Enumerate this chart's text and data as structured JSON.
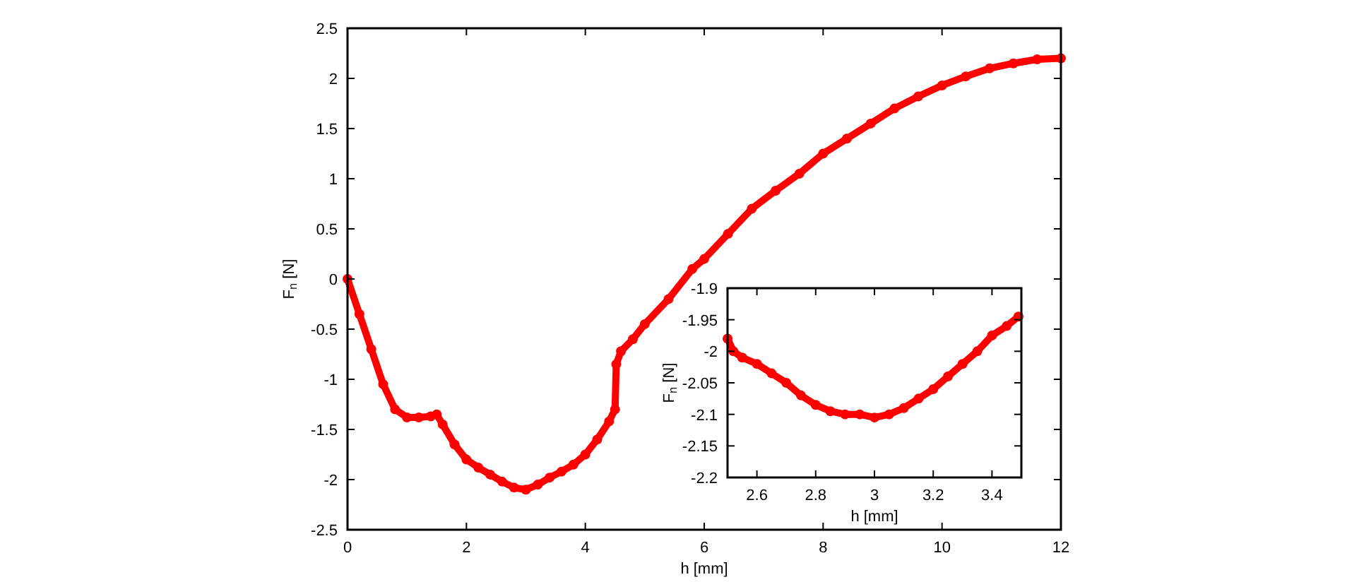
{
  "chart_data": [
    {
      "type": "line",
      "xlabel": "h [mm]",
      "ylabel": "F$_{n}$ [N]",
      "marker": "circle",
      "line_style": "solid",
      "grid": false,
      "xlim": [
        0,
        12
      ],
      "ylim": [
        -2.5,
        2.5
      ],
      "xticks": [
        0,
        2,
        4,
        6,
        8,
        10,
        12
      ],
      "yticks": [
        -2.5,
        -2,
        -1.5,
        -1,
        -0.5,
        0,
        0.5,
        1,
        1.5,
        2,
        2.5
      ],
      "series": [
        {
          "color": "#ff0000",
          "x": [
            0,
            0.2,
            0.4,
            0.6,
            0.8,
            1.0,
            1.2,
            1.4,
            1.5,
            1.6,
            1.8,
            2.0,
            2.2,
            2.4,
            2.6,
            2.8,
            3.0,
            3.2,
            3.4,
            3.6,
            3.8,
            4.0,
            4.2,
            4.4,
            4.5,
            4.52,
            4.6,
            4.8,
            5.0,
            5.4,
            5.8,
            6.0,
            6.4,
            6.8,
            7.2,
            7.6,
            8.0,
            8.4,
            8.8,
            9.2,
            9.6,
            10.0,
            10.4,
            10.8,
            11.2,
            11.6,
            12.0
          ],
          "values": [
            0,
            -0.35,
            -0.7,
            -1.05,
            -1.3,
            -1.38,
            -1.38,
            -1.37,
            -1.35,
            -1.45,
            -1.65,
            -1.8,
            -1.88,
            -1.95,
            -2.02,
            -2.08,
            -2.1,
            -2.05,
            -1.98,
            -1.92,
            -1.85,
            -1.75,
            -1.6,
            -1.42,
            -1.3,
            -0.85,
            -0.72,
            -0.6,
            -0.45,
            -0.2,
            0.1,
            0.2,
            0.45,
            0.7,
            0.88,
            1.05,
            1.25,
            1.4,
            1.55,
            1.7,
            1.82,
            1.93,
            2.02,
            2.1,
            2.15,
            2.19,
            2.2
          ]
        }
      ]
    },
    {
      "type": "line",
      "xlabel": "h [mm]",
      "ylabel": "F$_{n}$ [N]",
      "marker": "circle",
      "line_style": "solid",
      "grid": false,
      "xlim": [
        2.5,
        3.5
      ],
      "ylim": [
        -2.2,
        -1.9
      ],
      "xticks": [
        2.6,
        2.8,
        3,
        3.2,
        3.4
      ],
      "yticks": [
        -2.2,
        -2.15,
        -2.1,
        -2.05,
        -2,
        -1.95,
        -1.9
      ],
      "series": [
        {
          "color": "#ff0000",
          "x": [
            2.5,
            2.52,
            2.55,
            2.6,
            2.65,
            2.7,
            2.75,
            2.8,
            2.85,
            2.9,
            2.95,
            3.0,
            3.05,
            3.1,
            3.15,
            3.2,
            3.25,
            3.3,
            3.35,
            3.4,
            3.45,
            3.49
          ],
          "values": [
            -1.98,
            -2.0,
            -2.01,
            -2.02,
            -2.035,
            -2.05,
            -2.07,
            -2.085,
            -2.095,
            -2.1,
            -2.1,
            -2.105,
            -2.1,
            -2.09,
            -2.075,
            -2.06,
            -2.04,
            -2.02,
            -2.0,
            -1.975,
            -1.96,
            -1.945
          ]
        }
      ]
    }
  ]
}
